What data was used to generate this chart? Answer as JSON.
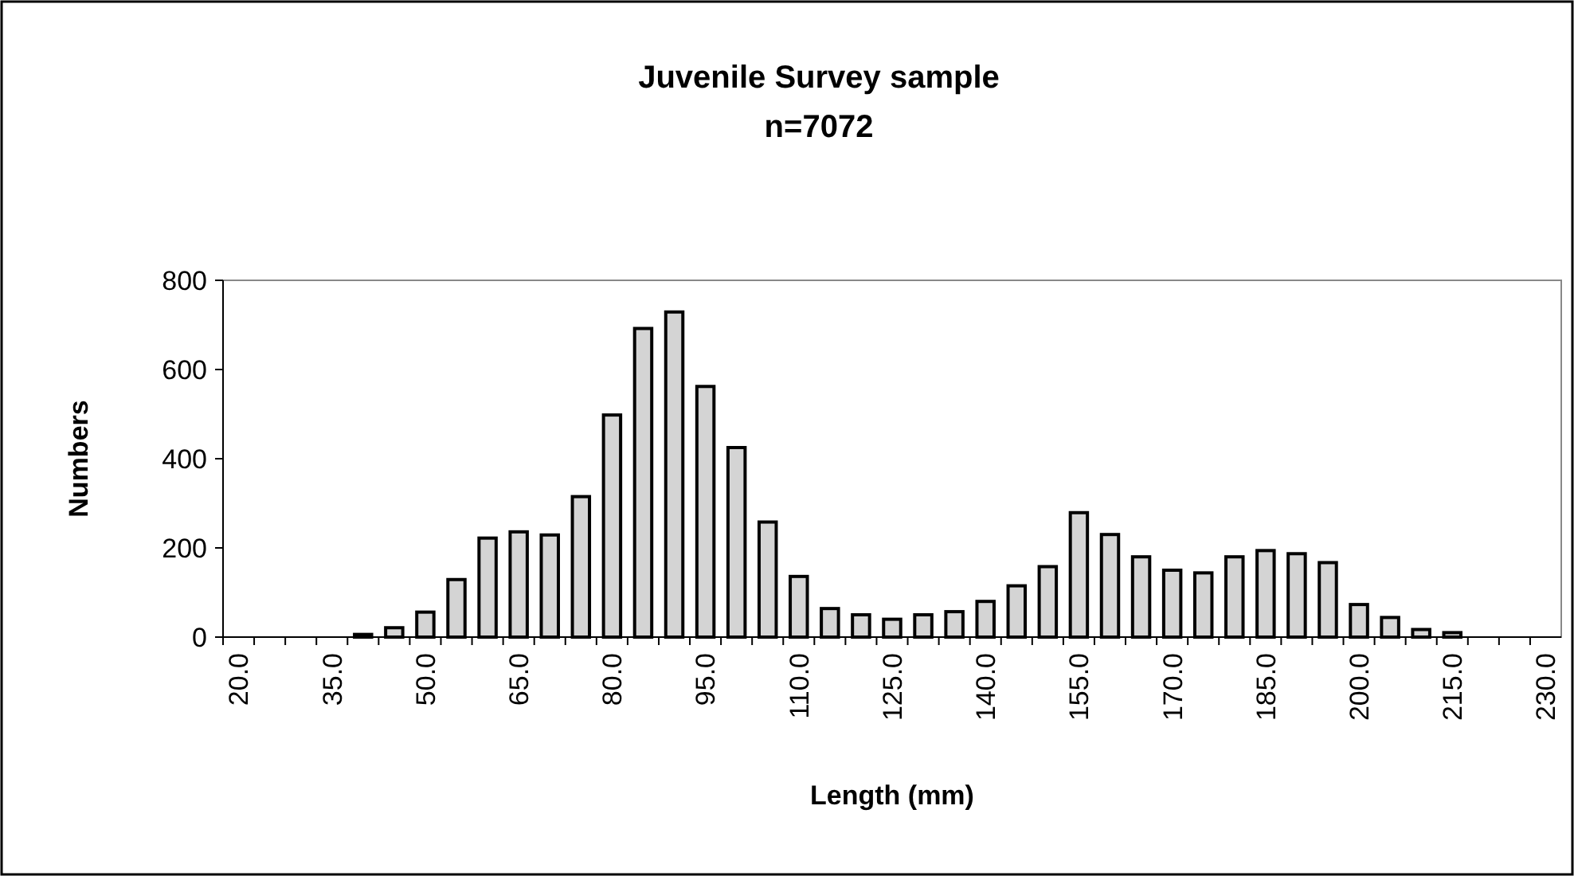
{
  "chart_data": {
    "type": "bar",
    "title": "Juvenile Survey sample",
    "subtitle": "n=7072",
    "xlabel": "Length (mm)",
    "ylabel": "Numbers",
    "categories": [
      "20.0",
      null,
      null,
      "35.0",
      null,
      null,
      "50.0",
      null,
      null,
      "65.0",
      null,
      null,
      "80.0",
      null,
      null,
      "95.0",
      null,
      null,
      "110.0",
      null,
      null,
      "125.0",
      null,
      null,
      "140.0",
      null,
      null,
      "155.0",
      null,
      null,
      "170.0",
      null,
      null,
      "185.0",
      null,
      null,
      "200.0",
      null,
      null,
      "215.0",
      null,
      null,
      "230.0"
    ],
    "values": [
      0,
      0,
      0,
      0,
      6,
      21,
      56,
      129,
      222,
      236,
      229,
      315,
      498,
      692,
      729,
      562,
      425,
      258,
      136,
      64,
      50,
      40,
      50,
      57,
      80,
      115,
      158,
      279,
      230,
      180,
      150,
      144,
      180,
      194,
      187,
      167,
      73,
      44,
      17,
      10,
      0,
      0,
      0
    ],
    "color": "#d4d4d4",
    "ylim": [
      0,
      800
    ],
    "yticks": [
      0,
      200,
      400,
      600,
      800
    ],
    "grid": false
  }
}
